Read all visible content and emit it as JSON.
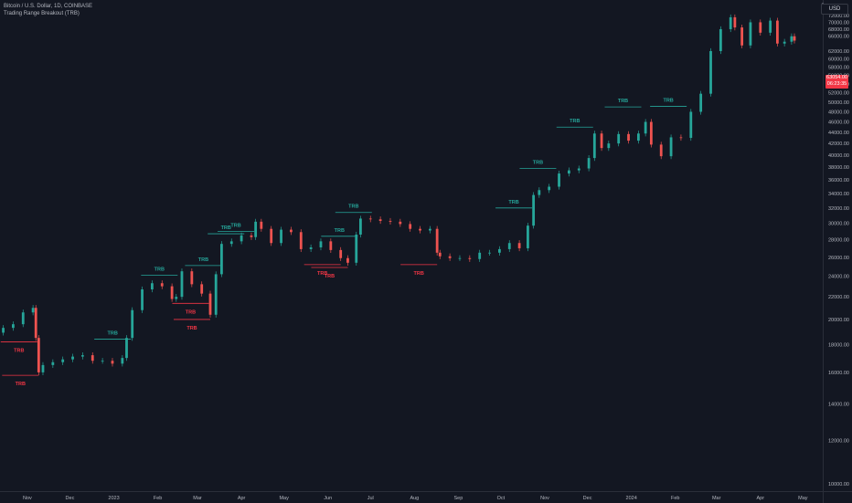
{
  "legend": {
    "symbol": "Bitcoin / U.S. Dollar, 1D, COINBASE",
    "indicator": "Trading Range Breakout (TRB)"
  },
  "currency": "USD",
  "last_price": {
    "price": "63054.00",
    "countdown": "06:23:35"
  },
  "colors": {
    "background": "#131722",
    "up": "#26a69a",
    "down": "#ef5350",
    "trb_up": "#26a69a",
    "trb_down": "#f23645",
    "axis_text": "#b2b5be"
  },
  "icons": {
    "collapse": "chevron-up-icon"
  },
  "chart_data": {
    "type": "candlestick",
    "x": [
      "2022-10-15",
      "2022-10-22",
      "2022-10-29",
      "2022-11-05",
      "2022-11-07",
      "2022-11-09",
      "2022-11-12",
      "2022-11-19",
      "2022-11-26",
      "2022-12-03",
      "2022-12-10",
      "2022-12-17",
      "2022-12-24",
      "2022-12-31",
      "2023-01-07",
      "2023-01-10",
      "2023-01-14",
      "2023-01-21",
      "2023-01-28",
      "2023-02-04",
      "2023-02-11",
      "2023-02-14",
      "2023-02-18",
      "2023-02-25",
      "2023-03-04",
      "2023-03-10",
      "2023-03-14",
      "2023-03-18",
      "2023-03-25",
      "2023-04-01",
      "2023-04-08",
      "2023-04-11",
      "2023-04-15",
      "2023-04-22",
      "2023-04-29",
      "2023-05-06",
      "2023-05-13",
      "2023-05-20",
      "2023-05-27",
      "2023-06-03",
      "2023-06-10",
      "2023-06-15",
      "2023-06-21",
      "2023-06-24",
      "2023-07-01",
      "2023-07-08",
      "2023-07-15",
      "2023-07-22",
      "2023-07-29",
      "2023-08-05",
      "2023-08-12",
      "2023-08-17",
      "2023-08-19",
      "2023-08-26",
      "2023-09-02",
      "2023-09-09",
      "2023-09-16",
      "2023-09-23",
      "2023-09-30",
      "2023-10-07",
      "2023-10-14",
      "2023-10-20",
      "2023-10-24",
      "2023-10-28",
      "2023-11-04",
      "2023-11-11",
      "2023-11-18",
      "2023-11-25",
      "2023-12-02",
      "2023-12-06",
      "2023-12-11",
      "2023-12-16",
      "2023-12-23",
      "2023-12-30",
      "2024-01-06",
      "2024-01-11",
      "2024-01-15",
      "2024-01-22",
      "2024-01-29",
      "2024-02-05",
      "2024-02-12",
      "2024-02-19",
      "2024-02-26",
      "2024-03-04",
      "2024-03-11",
      "2024-03-14",
      "2024-03-19",
      "2024-03-25",
      "2024-04-01",
      "2024-04-08",
      "2024-04-13",
      "2024-04-18",
      "2024-04-23",
      "2024-04-25"
    ],
    "close": [
      19300,
      19600,
      20600,
      21000,
      18500,
      16000,
      16500,
      16700,
      16900,
      17100,
      17200,
      16800,
      16800,
      16600,
      17000,
      18500,
      20800,
      22700,
      23300,
      23000,
      21800,
      22000,
      24500,
      23200,
      22300,
      20400,
      24200,
      27500,
      27800,
      28500,
      28300,
      30200,
      29300,
      27600,
      29200,
      28900,
      26900,
      27100,
      27800,
      26800,
      25900,
      25400,
      28600,
      30600,
      30500,
      30300,
      30200,
      29900,
      29300,
      29100,
      29300,
      26500,
      26100,
      25900,
      25900,
      25800,
      26500,
      26500,
      26900,
      27600,
      27000,
      29700,
      33800,
      34500,
      35000,
      37000,
      37500,
      37800,
      39500,
      43800,
      41200,
      42000,
      43700,
      42500,
      43800,
      46000,
      41800,
      39800,
      43100,
      43000,
      48000,
      51800,
      62000,
      68000,
      71500,
      68500,
      63500,
      70000,
      67000,
      70500,
      64000,
      64500,
      66000,
      64800
    ],
    "series_labels": {
      "up": "TRB",
      "down": "TRB"
    },
    "trb_breakouts_up": [
      {
        "date": "2023-01-13",
        "level": 18400
      },
      {
        "date": "2023-02-15",
        "level": 24100
      },
      {
        "date": "2023-03-18",
        "level": 25100
      },
      {
        "date": "2023-04-03",
        "level": 28700
      },
      {
        "date": "2023-04-10",
        "level": 29000
      },
      {
        "date": "2023-06-22",
        "level": 28400
      },
      {
        "date": "2023-07-02",
        "level": 31400
      },
      {
        "date": "2023-10-23",
        "level": 32000
      },
      {
        "date": "2023-11-09",
        "level": 37800
      },
      {
        "date": "2023-12-05",
        "level": 45000
      },
      {
        "date": "2024-01-08",
        "level": 49000
      },
      {
        "date": "2024-02-09",
        "level": 49100
      }
    ],
    "trb_breakouts_down": [
      {
        "date": "2022-11-08",
        "level": 18200
      },
      {
        "date": "2022-11-09",
        "level": 15800
      },
      {
        "date": "2023-03-09",
        "level": 21400
      },
      {
        "date": "2023-03-10",
        "level": 20000
      },
      {
        "date": "2023-06-10",
        "level": 25200
      },
      {
        "date": "2023-06-15",
        "level": 24900
      },
      {
        "date": "2023-08-17",
        "level": 25200
      }
    ],
    "y_ticks": [
      "10000.00",
      "12000.00",
      "14000.00",
      "16000.00",
      "18000.00",
      "20000.00",
      "22000.00",
      "24000.00",
      "26000.00",
      "28000.00",
      "30000.00",
      "32000.00",
      "34000.00",
      "36000.00",
      "38000.00",
      "40000.00",
      "42000.00",
      "44000.00",
      "46000.00",
      "48000.00",
      "50000.00",
      "52000.00",
      "54000.00",
      "56000.00",
      "58000.00",
      "60000.00",
      "62000.00",
      "66000.00",
      "68000.00",
      "70000.00",
      "72000.00"
    ],
    "x_ticks": [
      "Nov",
      "Dec",
      "2023",
      "Feb",
      "Mar",
      "Apr",
      "May",
      "Jun",
      "Jul",
      "Aug",
      "Sep",
      "Oct",
      "Nov",
      "Dec",
      "2024",
      "Feb",
      "Mar",
      "Apr",
      "May"
    ],
    "ylim": [
      10000,
      75000
    ],
    "scale": "log",
    "grid": false
  }
}
